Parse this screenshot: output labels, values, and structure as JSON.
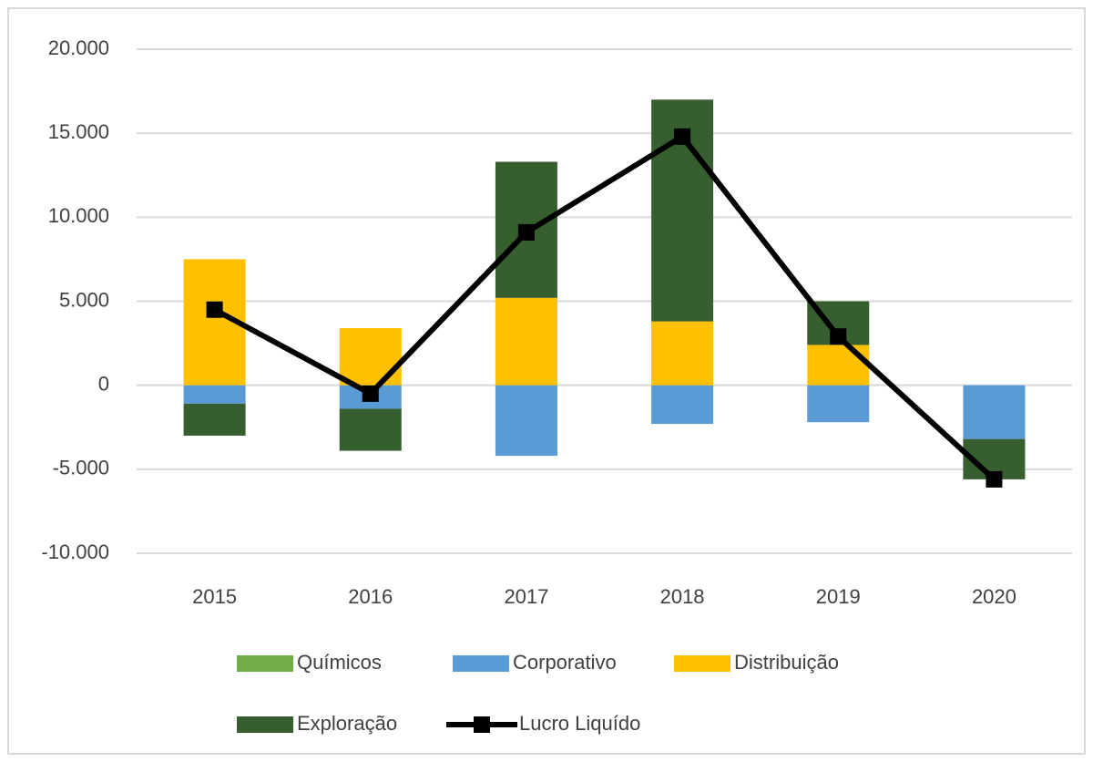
{
  "chart_data": {
    "type": "bar",
    "stacked": true,
    "categories": [
      "2015",
      "2016",
      "2017",
      "2018",
      "2019",
      "2020"
    ],
    "series": [
      {
        "name": "Químicos",
        "color": "#70ad47",
        "values": [
          0,
          0,
          0,
          0,
          0,
          0
        ]
      },
      {
        "name": "Corporativo",
        "color": "#5b9bd5",
        "values": [
          -1100,
          -1400,
          -4200,
          -2300,
          -2200,
          -3200
        ]
      },
      {
        "name": "Distribuição",
        "color": "#ffc000",
        "values": [
          7500,
          3400,
          5200,
          3800,
          2400,
          0
        ]
      },
      {
        "name": "Exploração",
        "color": "#375e2f",
        "values": [
          -1900,
          -2500,
          8100,
          13200,
          2600,
          -2400
        ]
      },
      {
        "name": "Lucro Liquído",
        "color": "#000000",
        "type": "line",
        "values": [
          4500,
          -500,
          9100,
          14800,
          2900,
          -5600
        ]
      }
    ],
    "ylim": [
      -10000,
      20000
    ],
    "yticks": [
      {
        "value": -10000,
        "label": "-10.000"
      },
      {
        "value": -5000,
        "label": "-5.000"
      },
      0,
      {
        "value": 5000,
        "label": "5.000"
      },
      {
        "value": 10000,
        "label": "10.000"
      },
      {
        "value": 15000,
        "label": "15.000"
      },
      {
        "value": 20000,
        "label": "20.000"
      }
    ],
    "grid": true,
    "legend": "bottom"
  }
}
